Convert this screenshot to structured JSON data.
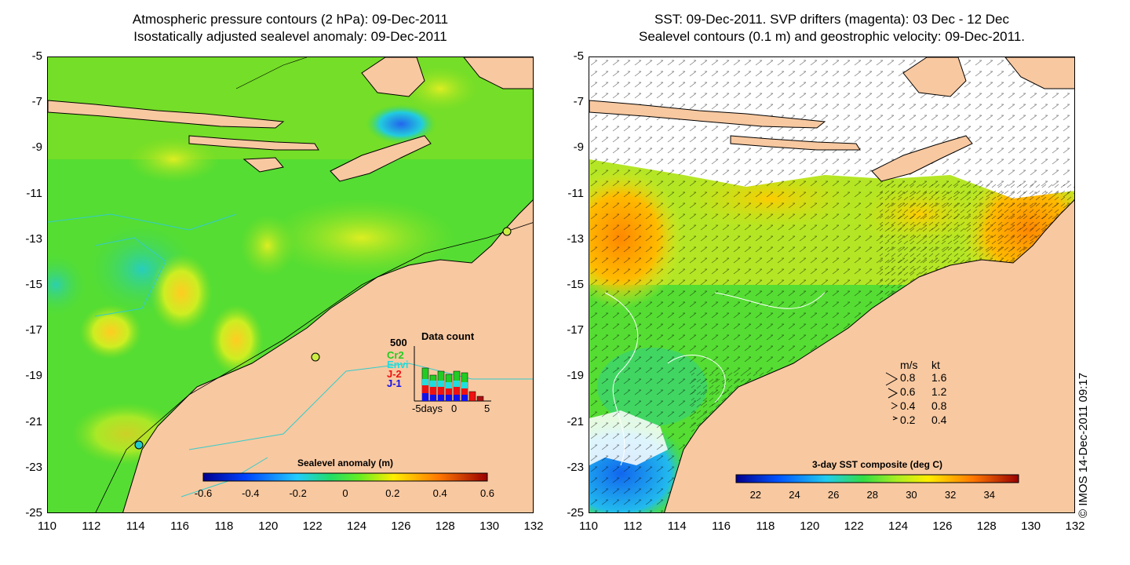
{
  "left": {
    "title_line1": "Atmospheric pressure contours (2 hPa): 09-Dec-2011",
    "title_line2": "Isostatically adjusted sealevel anomaly: 09-Dec-2011",
    "colorbar_title": "Sealevel anomaly (m)",
    "colorbar_ticks": [
      "-0.6",
      "-0.4",
      "-0.2",
      "0",
      "0.2",
      "0.4",
      "0.6"
    ],
    "colorbar_range": [
      -0.6,
      0.6
    ],
    "data_count": {
      "title": "Data count",
      "ymax_label": "500",
      "series": [
        {
          "name": "Cr2",
          "color": "#22cc22"
        },
        {
          "name": "Envi",
          "color": "#22dddd"
        },
        {
          "name": "J-2",
          "color": "#ee1111"
        },
        {
          "name": "J-1",
          "color": "#1111ee"
        }
      ],
      "x_ticks": [
        "-5days",
        "0",
        "5"
      ]
    }
  },
  "right": {
    "title_line1": "SST: 09-Dec-2011. SVP drifters (magenta): 03 Dec - 12 Dec",
    "title_line2": "Sealevel contours (0.1 m) and geostrophic velocity: 09-Dec-2011.",
    "colorbar_title": "3-day SST composite (deg C)",
    "colorbar_ticks": [
      "22",
      "24",
      "26",
      "28",
      "30",
      "32",
      "34"
    ],
    "colorbar_range": [
      21,
      35.5
    ],
    "velocity_legend": {
      "header_ms": "m/s",
      "header_kt": "kt",
      "rows": [
        {
          "ms": "0.8",
          "kt": "1.6"
        },
        {
          "ms": "0.6",
          "kt": "1.2"
        },
        {
          "ms": "0.4",
          "kt": "0.8"
        },
        {
          "ms": "0.2",
          "kt": "0.4"
        }
      ]
    }
  },
  "axes": {
    "lat_ticks": [
      "-5",
      "-7",
      "-9",
      "-11",
      "-13",
      "-15",
      "-17",
      "-19",
      "-21",
      "-23",
      "-25"
    ],
    "lon_ticks": [
      "110",
      "112",
      "114",
      "116",
      "118",
      "120",
      "122",
      "124",
      "126",
      "128",
      "130",
      "132"
    ],
    "lat_range": [
      -25,
      -5
    ],
    "lon_range": [
      110,
      132
    ]
  },
  "copyright": "© IMOS 14-Dec-2011 09:17",
  "colors": {
    "land": "#f8c8a0",
    "sea_mid": "#44dd22",
    "cloud": "#ffffff"
  }
}
